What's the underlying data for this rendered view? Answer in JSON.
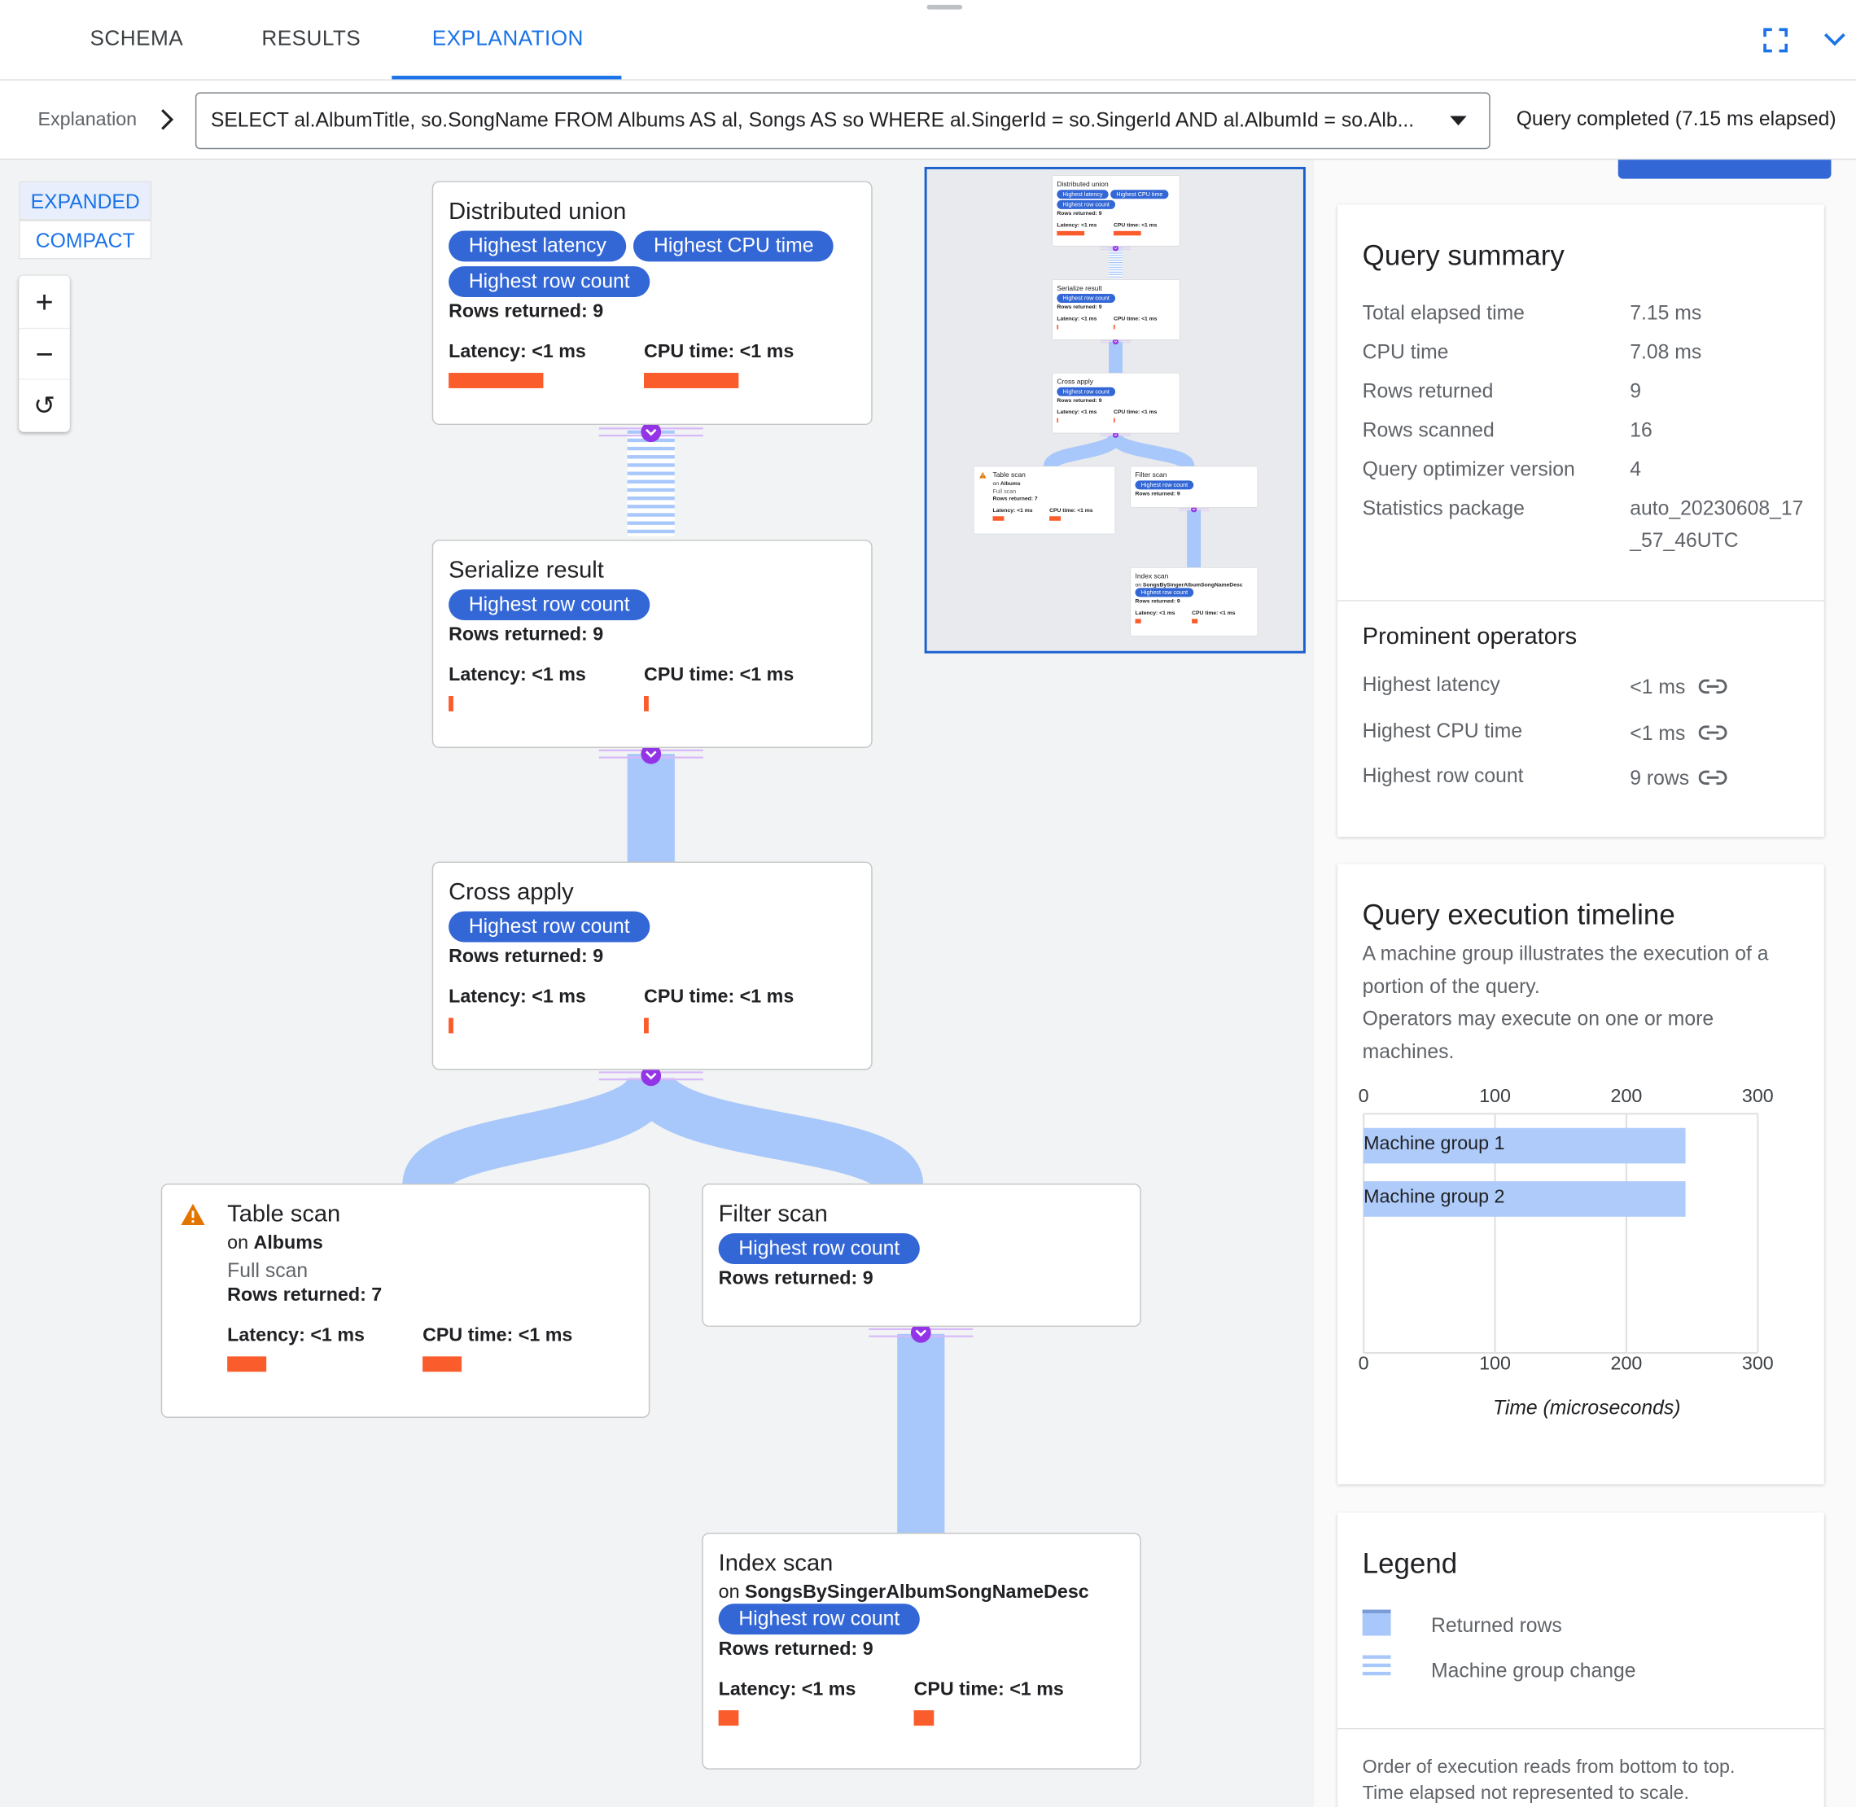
{
  "tabs": [
    {
      "label": "SCHEMA"
    },
    {
      "label": "RESULTS"
    },
    {
      "label": "EXPLANATION",
      "active": true
    }
  ],
  "header_icons": [
    "fullscreen-icon",
    "chevron-down-icon"
  ],
  "toolbar": {
    "breadcrumb": "Explanation",
    "query": "SELECT al.AlbumTitle, so.SongName FROM Albums AS al, Songs AS so WHERE al.SingerId = so.SingerId AND al.AlbumId = so.Alb...",
    "status": "Query completed (7.15 ms elapsed)"
  },
  "view_modes": {
    "expanded": "EXPANDED",
    "compact": "COMPACT",
    "selected": "EXPANDED"
  },
  "zoom_controls": {
    "zoom_in": "+",
    "zoom_out": "−",
    "reset": "↺"
  },
  "colors": {
    "accent": "#1a73e8",
    "chip": "#3367d6",
    "bar": "#fa5c2c",
    "flow": "#a8c7fa",
    "connector": "#9334e6",
    "warning": "#e37400"
  },
  "graph": {
    "nodes": [
      {
        "title": "Distributed union",
        "chips": [
          "Highest latency",
          "Highest CPU time",
          "Highest row count"
        ],
        "rows": "Rows returned: 9",
        "latency": "Latency: <1 ms",
        "cpu": "CPU time: <1 ms",
        "latency_level": 1.0,
        "cpu_level": 1.0
      },
      {
        "title": "Serialize result",
        "chips": [
          "Highest row count"
        ],
        "rows": "Rows returned: 9",
        "latency": "Latency: <1 ms",
        "cpu": "CPU time: <1 ms",
        "latency_level": 0.05,
        "cpu_level": 0.05
      },
      {
        "title": "Cross apply",
        "chips": [
          "Highest row count"
        ],
        "rows": "Rows returned: 9",
        "latency": "Latency: <1 ms",
        "cpu": "CPU time: <1 ms",
        "latency_level": 0.05,
        "cpu_level": 0.05
      },
      {
        "title": "Table scan",
        "warning": true,
        "on_prefix": "on",
        "on_table": "Albums",
        "scan_type": "Full scan",
        "chips": [],
        "rows": "Rows returned: 7",
        "latency": "Latency: <1 ms",
        "cpu": "CPU time: <1 ms",
        "latency_level": 0.41,
        "cpu_level": 0.41
      },
      {
        "title": "Filter scan",
        "chips": [
          "Highest row count"
        ],
        "rows": "Rows returned: 9"
      },
      {
        "title": "Index scan",
        "on_prefix": "on",
        "on_table": "SongsBySingerAlbumSongNameDesc",
        "chips": [
          "Highest row count"
        ],
        "rows": "Rows returned: 9",
        "latency": "Latency: <1 ms",
        "cpu": "CPU time: <1 ms",
        "latency_level": 0.21,
        "cpu_level": 0.21
      }
    ]
  },
  "summary": {
    "title": "Query summary",
    "rows": [
      {
        "label": "Total elapsed time",
        "value": "7.15 ms"
      },
      {
        "label": "CPU time",
        "value": "7.08 ms"
      },
      {
        "label": "Rows returned",
        "value": "9"
      },
      {
        "label": "Rows scanned",
        "value": "16"
      },
      {
        "label": "Query optimizer version",
        "value": "4"
      },
      {
        "label": "Statistics package",
        "value": "auto_20230608_17_57_46UTC"
      }
    ],
    "prominent_title": "Prominent operators",
    "prominent": [
      {
        "label": "Highest latency",
        "value": "<1 ms"
      },
      {
        "label": "Highest CPU time",
        "value": "<1 ms"
      },
      {
        "label": "Highest row count",
        "value": "9 rows"
      }
    ]
  },
  "timeline": {
    "title": "Query execution timeline",
    "desc1": "A machine group illustrates the execution of a portion of the query.",
    "desc2": "Operators may execute on one or more machines."
  },
  "chart_data": {
    "type": "bar",
    "orientation": "horizontal",
    "categories": [
      "Machine group 1",
      "Machine group 2"
    ],
    "values": [
      245,
      245
    ],
    "xlabel": "Time (microseconds)",
    "xlim": [
      0,
      300
    ],
    "xticks": [
      0,
      100,
      200,
      300
    ],
    "grid": true,
    "bar_color": "#aecbfa"
  },
  "legend": {
    "title": "Legend",
    "items": [
      {
        "label": "Returned rows"
      },
      {
        "label": "Machine group change"
      }
    ],
    "note1": "Order of execution reads from bottom to top.",
    "note2": "Time elapsed not represented to scale."
  }
}
